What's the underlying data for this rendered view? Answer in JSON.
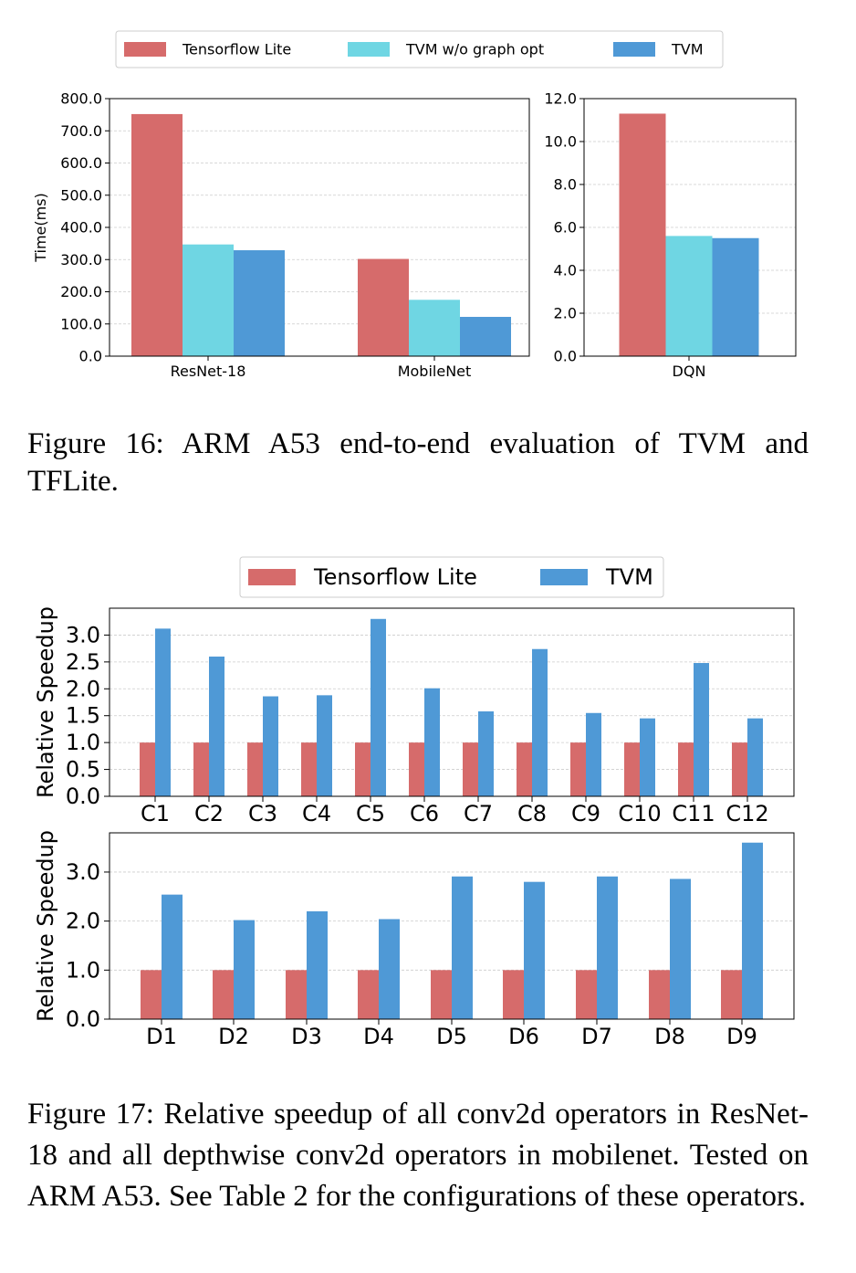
{
  "colors": {
    "tflite": "#d66b6b",
    "tvm_wo": "#6fd6e3",
    "tvm": "#4f99d6",
    "grid": "#cccccc"
  },
  "captions": {
    "fig16": "Figure 16:  ARM A53 end-to-end evaluation of TVM and TFLite.",
    "fig17": "Figure 17: Relative speedup of all conv2d operators in ResNet-18 and all depthwise conv2d operators in mobilenet. Tested on ARM A53. See Table 2 for the configurations of these operators."
  },
  "chart_data": [
    {
      "type": "bar",
      "id": "fig16-left",
      "categories": [
        "ResNet-18",
        "MobileNet"
      ],
      "series": [
        {
          "name": "Tensorflow Lite",
          "values": [
            752,
            302
          ]
        },
        {
          "name": "TVM w/o graph opt",
          "values": [
            347,
            175
          ]
        },
        {
          "name": "TVM",
          "values": [
            329,
            122
          ]
        }
      ],
      "ylabel": "Time(ms)",
      "ylim": [
        0,
        800
      ],
      "yticks": [
        "0.0",
        "100.0",
        "200.0",
        "300.0",
        "400.0",
        "500.0",
        "600.0",
        "700.0",
        "800.0"
      ],
      "legend": "top-center",
      "grid": true
    },
    {
      "type": "bar",
      "id": "fig16-right",
      "categories": [
        "DQN"
      ],
      "series": [
        {
          "name": "Tensorflow Lite",
          "values": [
            11.3
          ]
        },
        {
          "name": "TVM w/o graph opt",
          "values": [
            5.6
          ]
        },
        {
          "name": "TVM",
          "values": [
            5.5
          ]
        }
      ],
      "ylim": [
        0,
        12
      ],
      "yticks": [
        "0.0",
        "2.0",
        "4.0",
        "6.0",
        "8.0",
        "10.0",
        "12.0"
      ],
      "grid": true
    },
    {
      "type": "bar",
      "id": "fig17-top",
      "categories": [
        "C1",
        "C2",
        "C3",
        "C4",
        "C5",
        "C6",
        "C7",
        "C8",
        "C9",
        "C10",
        "C11",
        "C12"
      ],
      "series": [
        {
          "name": "Tensorflow Lite",
          "values": [
            1.0,
            1.0,
            1.0,
            1.0,
            1.0,
            1.0,
            1.0,
            1.0,
            1.0,
            1.0,
            1.0,
            1.0
          ]
        },
        {
          "name": "TVM",
          "values": [
            3.12,
            2.6,
            1.86,
            1.88,
            3.3,
            2.01,
            1.58,
            2.74,
            1.55,
            1.45,
            2.48,
            1.45
          ]
        }
      ],
      "ylabel": "Relative Speedup",
      "ylim": [
        0,
        3.5
      ],
      "yticks": [
        "0.0",
        "0.5",
        "1.0",
        "1.5",
        "2.0",
        "2.5",
        "3.0"
      ],
      "legend": "top-center",
      "grid": true
    },
    {
      "type": "bar",
      "id": "fig17-bottom",
      "categories": [
        "D1",
        "D2",
        "D3",
        "D4",
        "D5",
        "D6",
        "D7",
        "D8",
        "D9"
      ],
      "series": [
        {
          "name": "Tensorflow Lite",
          "values": [
            1.0,
            1.0,
            1.0,
            1.0,
            1.0,
            1.0,
            1.0,
            1.0,
            1.0
          ]
        },
        {
          "name": "TVM",
          "values": [
            2.54,
            2.02,
            2.2,
            2.04,
            2.91,
            2.8,
            2.91,
            2.86,
            3.6
          ]
        }
      ],
      "ylabel": "Relative Speedup",
      "ylim": [
        0,
        3.8
      ],
      "yticks": [
        "0.0",
        "1.0",
        "2.0",
        "3.0"
      ],
      "grid": true
    }
  ]
}
